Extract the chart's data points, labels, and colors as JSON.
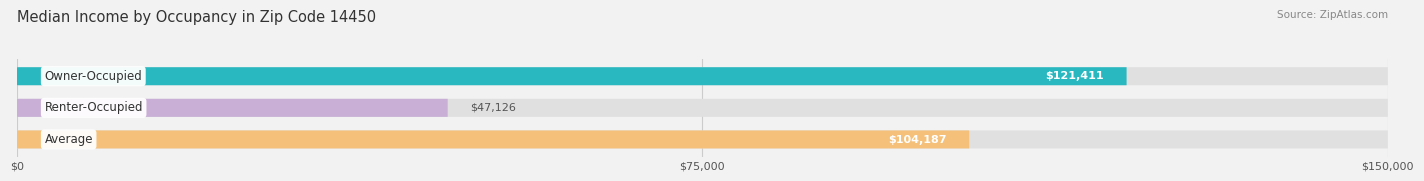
{
  "title": "Median Income by Occupancy in Zip Code 14450",
  "source_text": "Source: ZipAtlas.com",
  "categories": [
    "Owner-Occupied",
    "Renter-Occupied",
    "Average"
  ],
  "values": [
    121411,
    47126,
    104187
  ],
  "bar_colors": [
    "#2ab8c0",
    "#c9aed6",
    "#f5c07a"
  ],
  "label_colors": [
    "#ffffff",
    "#555555",
    "#ffffff"
  ],
  "xlim": [
    0,
    150000
  ],
  "xticks": [
    0,
    75000,
    150000
  ],
  "xtick_labels": [
    "$0",
    "$75,000",
    "$150,000"
  ],
  "bar_height": 0.55,
  "background_color": "#f2f2f2",
  "bar_bg_color": "#e0e0e0",
  "value_labels": [
    "$121,411",
    "$47,126",
    "$104,187"
  ],
  "title_fontsize": 10.5,
  "label_fontsize": 8.5,
  "value_fontsize": 8,
  "tick_fontsize": 8
}
